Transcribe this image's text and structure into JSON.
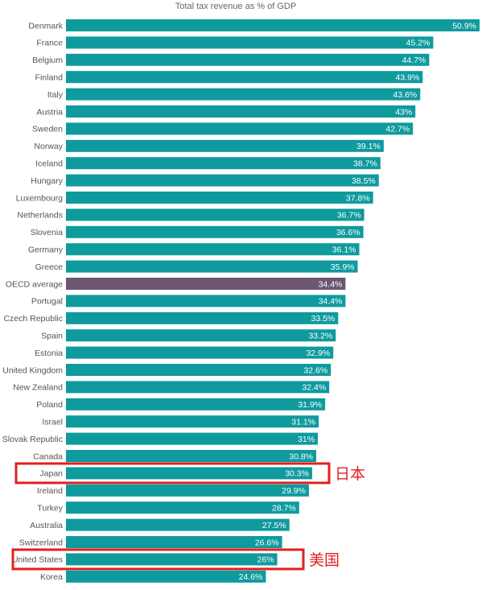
{
  "chart_data": {
    "type": "bar",
    "orientation": "horizontal",
    "title": "Total tax revenue as % of GDP",
    "categories": [
      "Denmark",
      "France",
      "Belgium",
      "Finland",
      "Italy",
      "Austria",
      "Sweden",
      "Norway",
      "Iceland",
      "Hungary",
      "Luxembourg",
      "Netherlands",
      "Slovenia",
      "Germany",
      "Greece",
      "OECD average",
      "Portugal",
      "Czech Republic",
      "Spain",
      "Estonia",
      "United Kingdom",
      "New Zealand",
      "Poland",
      "Israel",
      "Slovak Republic",
      "Canada",
      "Japan",
      "Ireland",
      "Turkey",
      "Australia",
      "Switzerland",
      "United States",
      "Korea"
    ],
    "values": [
      50.9,
      45.2,
      44.7,
      43.9,
      43.6,
      43,
      42.7,
      39.1,
      38.7,
      38.5,
      37.8,
      36.7,
      36.6,
      36.1,
      35.9,
      34.4,
      34.4,
      33.5,
      33.2,
      32.9,
      32.6,
      32.4,
      31.9,
      31.1,
      31,
      30.8,
      30.3,
      29.9,
      28.7,
      27.5,
      26.6,
      26,
      24.6
    ],
    "value_labels": [
      "50.9%",
      "45.2%",
      "44.7%",
      "43.9%",
      "43.6%",
      "43%",
      "42.7%",
      "39.1%",
      "38.7%",
      "38.5%",
      "37.8%",
      "36.7%",
      "36.6%",
      "36.1%",
      "35.9%",
      "34.4%",
      "34.4%",
      "33.5%",
      "33.2%",
      "32.9%",
      "32.6%",
      "32.4%",
      "31.9%",
      "31.1%",
      "31%",
      "30.8%",
      "30.3%",
      "29.9%",
      "28.7%",
      "27.5%",
      "26.6%",
      "26%",
      "24.6%"
    ],
    "xlim": [
      0,
      50.9
    ],
    "grid": false,
    "legend": "none",
    "colors": {
      "bar": "#0f9a9e",
      "highlight": "#6c5670"
    },
    "highlight_category": "OECD average",
    "annotations": [
      {
        "category": "Japan",
        "text": "日本",
        "color": "#e02020"
      },
      {
        "category": "United States",
        "text": "美国",
        "color": "#e02020"
      }
    ]
  }
}
